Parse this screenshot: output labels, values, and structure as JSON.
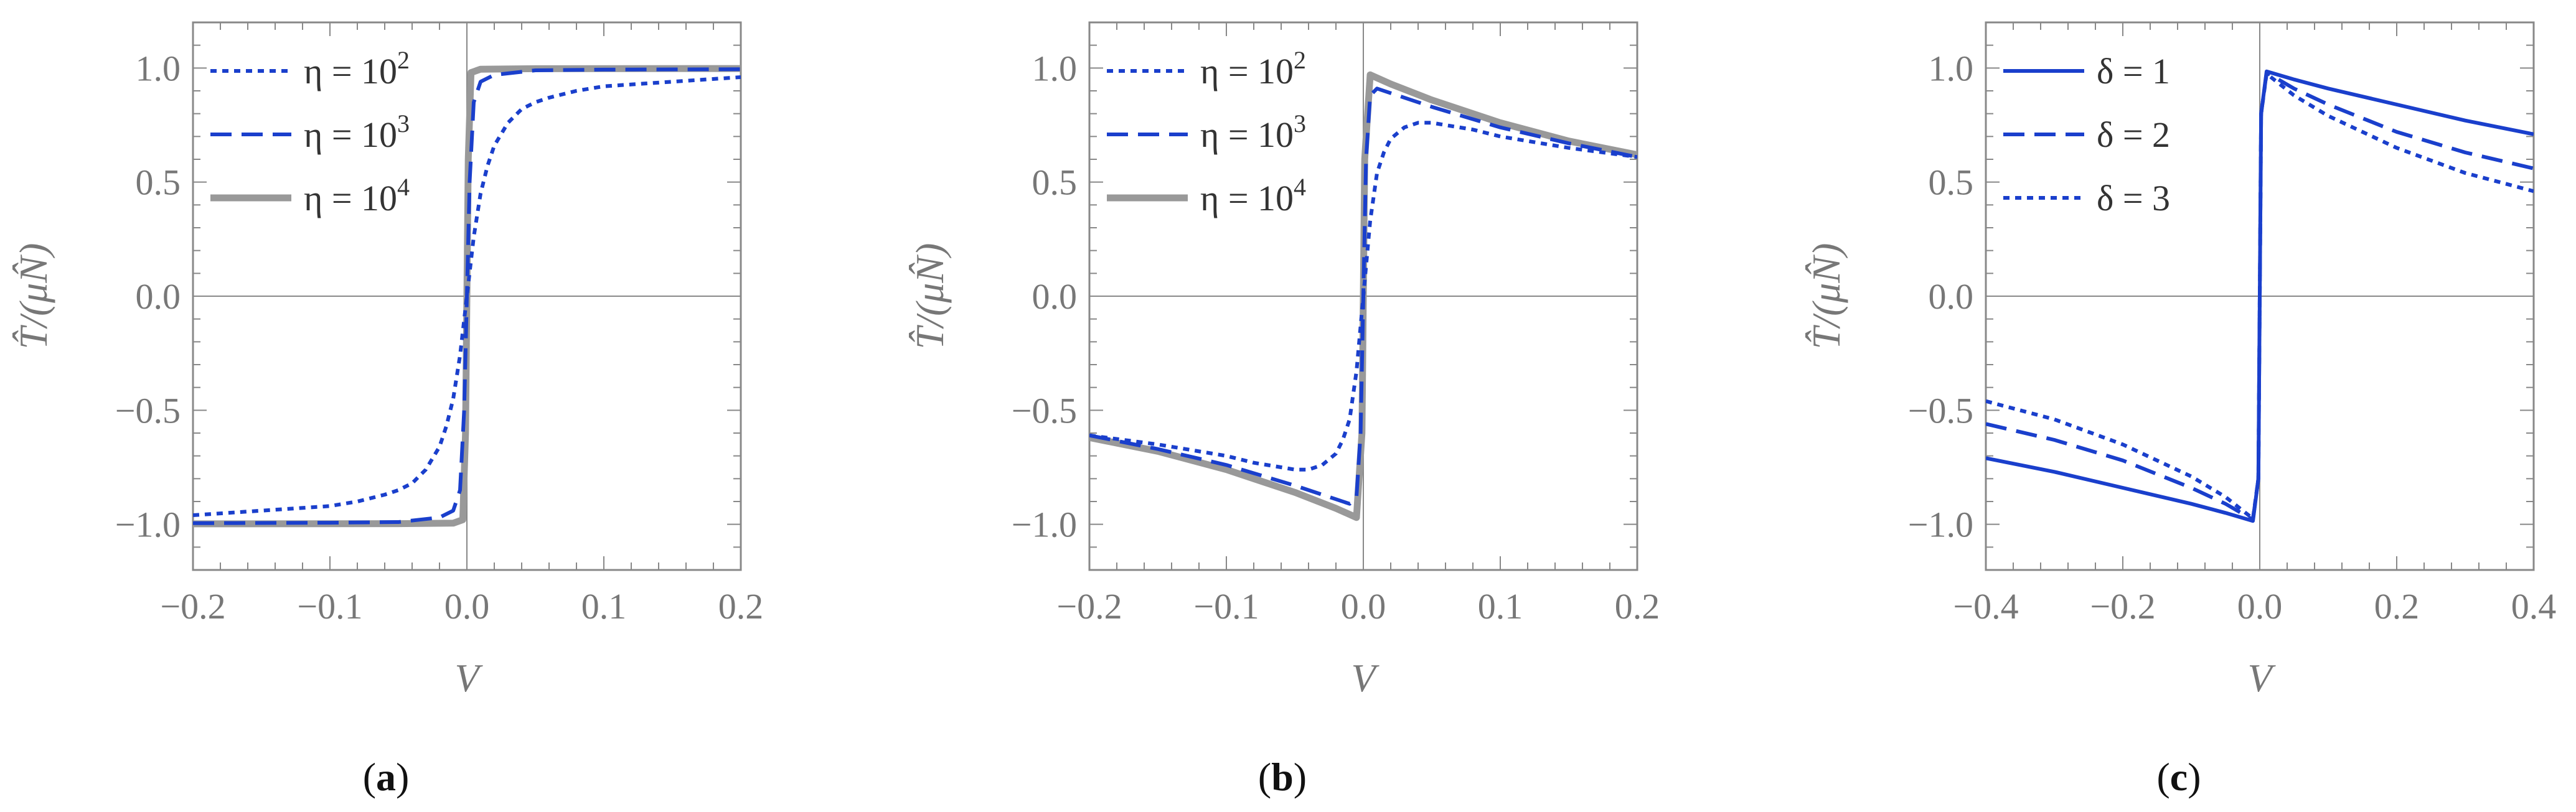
{
  "chart_data": [
    {
      "type": "line",
      "panel": "a",
      "panel_label": "a",
      "xlabel": "V",
      "ylabel": "T̂/(μN̂)",
      "xlim": [
        -0.2,
        0.2
      ],
      "ylim": [
        -1.2,
        1.2
      ],
      "xticks": [
        -0.2,
        -0.1,
        0.0,
        0.1,
        0.2
      ],
      "xtick_labels": [
        "−0.2",
        "−0.1",
        "0.0",
        "0.1",
        "0.2"
      ],
      "yticks": [
        -1.0,
        -0.5,
        0.0,
        0.5,
        1.0
      ],
      "ytick_labels": [
        "−1.0",
        "−0.5",
        "0.0",
        "0.5",
        "1.0"
      ],
      "legend_position": "top-left",
      "series": [
        {
          "name": "η = 10^2",
          "legend_base": "η = 10",
          "legend_exp": "2",
          "style": "dotted",
          "color": "#1a3fcc",
          "x": [
            -0.2,
            -0.15,
            -0.1,
            -0.08,
            -0.06,
            -0.05,
            -0.04,
            -0.03,
            -0.02,
            -0.015,
            -0.01,
            -0.005,
            0.0,
            0.005,
            0.01,
            0.015,
            0.02,
            0.03,
            0.04,
            0.05,
            0.06,
            0.08,
            0.1,
            0.15,
            0.2
          ],
          "y": [
            -0.96,
            -0.94,
            -0.92,
            -0.9,
            -0.87,
            -0.85,
            -0.82,
            -0.76,
            -0.66,
            -0.57,
            -0.45,
            -0.26,
            0.0,
            0.26,
            0.45,
            0.57,
            0.66,
            0.76,
            0.82,
            0.85,
            0.87,
            0.9,
            0.92,
            0.94,
            0.96
          ]
        },
        {
          "name": "η = 10^3",
          "legend_base": "η = 10",
          "legend_exp": "3",
          "style": "dashed",
          "color": "#1a3fcc",
          "x": [
            -0.2,
            -0.1,
            -0.05,
            -0.02,
            -0.01,
            -0.005,
            -0.002,
            0.0,
            0.002,
            0.005,
            0.01,
            0.02,
            0.05,
            0.1,
            0.2
          ],
          "y": [
            -0.995,
            -0.993,
            -0.99,
            -0.97,
            -0.94,
            -0.85,
            -0.5,
            0.0,
            0.5,
            0.85,
            0.94,
            0.97,
            0.99,
            0.993,
            0.995
          ]
        },
        {
          "name": "η = 10^4",
          "legend_base": "η = 10",
          "legend_exp": "4",
          "style": "solid-thick",
          "color": "#999999",
          "x": [
            -0.2,
            -0.05,
            -0.01,
            -0.003,
            -0.001,
            0.0,
            0.001,
            0.003,
            0.01,
            0.05,
            0.2
          ],
          "y": [
            -0.998,
            -0.997,
            -0.995,
            -0.98,
            -0.6,
            0.0,
            0.6,
            0.98,
            0.995,
            0.997,
            0.998
          ]
        }
      ]
    },
    {
      "type": "line",
      "panel": "b",
      "panel_label": "b",
      "xlabel": "V",
      "ylabel": "T̂/(μN̂)",
      "xlim": [
        -0.2,
        0.2
      ],
      "ylim": [
        -1.2,
        1.2
      ],
      "xticks": [
        -0.2,
        -0.1,
        0.0,
        0.1,
        0.2
      ],
      "xtick_labels": [
        "−0.2",
        "−0.1",
        "0.0",
        "0.1",
        "0.2"
      ],
      "yticks": [
        -1.0,
        -0.5,
        0.0,
        0.5,
        1.0
      ],
      "ytick_labels": [
        "−1.0",
        "−0.5",
        "0.0",
        "0.5",
        "1.0"
      ],
      "legend_position": "top-left",
      "series": [
        {
          "name": "η = 10^2",
          "legend_base": "η = 10",
          "legend_exp": "2",
          "style": "dotted",
          "color": "#1a3fcc",
          "x": [
            -0.2,
            -0.15,
            -0.1,
            -0.08,
            -0.06,
            -0.05,
            -0.04,
            -0.03,
            -0.02,
            -0.015,
            -0.01,
            -0.005,
            0.0,
            0.005,
            0.01,
            0.015,
            0.02,
            0.03,
            0.04,
            0.05,
            0.06,
            0.08,
            0.1,
            0.15,
            0.2
          ],
          "y": [
            -0.61,
            -0.65,
            -0.7,
            -0.73,
            -0.75,
            -0.76,
            -0.76,
            -0.74,
            -0.69,
            -0.63,
            -0.54,
            -0.33,
            0.0,
            0.33,
            0.54,
            0.63,
            0.69,
            0.74,
            0.76,
            0.76,
            0.75,
            0.73,
            0.7,
            0.65,
            0.61
          ]
        },
        {
          "name": "η = 10^3",
          "legend_base": "η = 10",
          "legend_exp": "3",
          "style": "dashed",
          "color": "#1a3fcc",
          "x": [
            -0.2,
            -0.15,
            -0.1,
            -0.05,
            -0.02,
            -0.01,
            -0.005,
            -0.002,
            0.0,
            0.002,
            0.005,
            0.01,
            0.02,
            0.05,
            0.1,
            0.15,
            0.2
          ],
          "y": [
            -0.61,
            -0.67,
            -0.74,
            -0.83,
            -0.89,
            -0.91,
            -0.88,
            -0.6,
            0.0,
            0.6,
            0.88,
            0.91,
            0.89,
            0.83,
            0.74,
            0.67,
            0.61
          ]
        },
        {
          "name": "η = 10^4",
          "legend_base": "η = 10",
          "legend_exp": "4",
          "style": "solid-thick",
          "color": "#999999",
          "x": [
            -0.2,
            -0.15,
            -0.1,
            -0.05,
            -0.02,
            -0.005,
            -0.001,
            0.0,
            0.001,
            0.005,
            0.02,
            0.05,
            0.1,
            0.15,
            0.2
          ],
          "y": [
            -0.62,
            -0.68,
            -0.76,
            -0.86,
            -0.93,
            -0.97,
            -0.6,
            0.0,
            0.6,
            0.97,
            0.93,
            0.86,
            0.76,
            0.68,
            0.62
          ]
        }
      ]
    },
    {
      "type": "line",
      "panel": "c",
      "panel_label": "c",
      "xlabel": "V",
      "ylabel": "T̂/(μN̂)",
      "xlim": [
        -0.4,
        0.4
      ],
      "ylim": [
        -1.2,
        1.2
      ],
      "xticks": [
        -0.4,
        -0.2,
        0.0,
        0.2,
        0.4
      ],
      "xtick_labels": [
        "−0.4",
        "−0.2",
        "0.0",
        "0.2",
        "0.4"
      ],
      "yticks": [
        -1.0,
        -0.5,
        0.0,
        0.5,
        1.0
      ],
      "ytick_labels": [
        "−1.0",
        "−0.5",
        "0.0",
        "0.5",
        "1.0"
      ],
      "legend_position": "top-left",
      "series": [
        {
          "name": "δ = 1",
          "legend_base": "δ = 1",
          "legend_exp": "",
          "style": "solid",
          "color": "#1a3fcc",
          "x": [
            -0.4,
            -0.3,
            -0.2,
            -0.1,
            -0.05,
            -0.01,
            -0.002,
            0.0,
            0.002,
            0.01,
            0.05,
            0.1,
            0.2,
            0.3,
            0.4
          ],
          "y": [
            -0.71,
            -0.77,
            -0.84,
            -0.91,
            -0.95,
            -0.985,
            -0.8,
            0.0,
            0.8,
            0.985,
            0.95,
            0.91,
            0.84,
            0.77,
            0.71
          ]
        },
        {
          "name": "δ = 2",
          "legend_base": "δ = 2",
          "legend_exp": "",
          "style": "dashed",
          "color": "#1a3fcc",
          "x": [
            -0.4,
            -0.3,
            -0.2,
            -0.1,
            -0.05,
            -0.01,
            -0.002,
            0.0,
            0.002,
            0.01,
            0.05,
            0.1,
            0.2,
            0.3,
            0.4
          ],
          "y": [
            -0.56,
            -0.63,
            -0.72,
            -0.84,
            -0.91,
            -0.98,
            -0.8,
            0.0,
            0.8,
            0.98,
            0.91,
            0.84,
            0.72,
            0.63,
            0.56
          ]
        },
        {
          "name": "δ = 3",
          "legend_base": "δ = 3",
          "legend_exp": "",
          "style": "dotted",
          "color": "#1a3fcc",
          "x": [
            -0.4,
            -0.3,
            -0.2,
            -0.1,
            -0.05,
            -0.01,
            -0.002,
            0.0,
            0.002,
            0.01,
            0.05,
            0.1,
            0.2,
            0.3,
            0.4
          ],
          "y": [
            -0.46,
            -0.54,
            -0.65,
            -0.79,
            -0.88,
            -0.975,
            -0.8,
            0.0,
            0.8,
            0.975,
            0.88,
            0.79,
            0.65,
            0.54,
            0.46
          ]
        }
      ]
    }
  ]
}
